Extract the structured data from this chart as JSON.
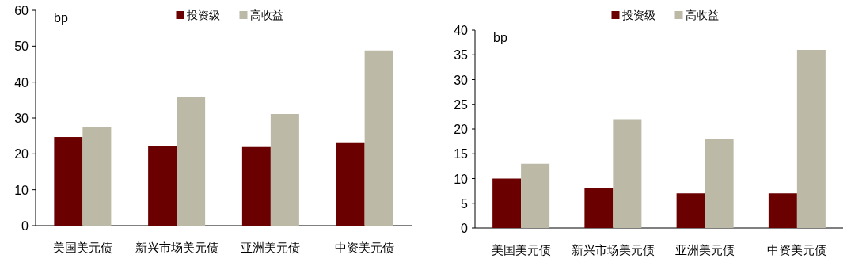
{
  "chart_data": [
    {
      "type": "bar",
      "ylabel": "bp",
      "categories": [
        "美国美元债",
        "新兴市场美元债",
        "亚洲美元债",
        "中资美元债"
      ],
      "ylim": [
        0,
        60
      ],
      "yticks": [
        0,
        10,
        20,
        30,
        40,
        50,
        60
      ],
      "legend": "top",
      "series": [
        {
          "name": "投资级",
          "color": "#6b0000",
          "values": [
            24.7,
            22.1,
            21.9,
            23.0
          ]
        },
        {
          "name": "高收益",
          "color": "#bcb9a6",
          "values": [
            27.4,
            35.8,
            31.1,
            48.8
          ]
        }
      ]
    },
    {
      "type": "bar",
      "ylabel": "bp",
      "categories": [
        "美国美元债",
        "新兴市场美元债",
        "亚洲美元债",
        "中资美元债"
      ],
      "ylim": [
        0,
        40
      ],
      "yticks": [
        0,
        5,
        10,
        15,
        20,
        25,
        30,
        35,
        40
      ],
      "legend": "top",
      "series": [
        {
          "name": "投资级",
          "color": "#6b0000",
          "values": [
            10,
            8,
            7,
            7
          ]
        },
        {
          "name": "高收益",
          "color": "#bcb9a6",
          "values": [
            13,
            22,
            18,
            36
          ]
        }
      ]
    }
  ]
}
